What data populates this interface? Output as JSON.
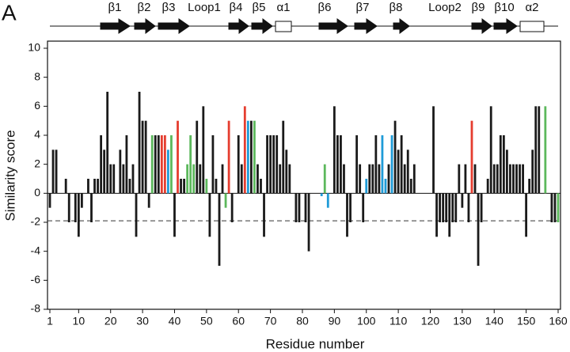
{
  "panel_label": "A",
  "structure": {
    "labels": [
      "β1",
      "β2",
      "β3",
      "Loop1",
      "β4",
      "β5",
      "α1",
      "β6",
      "β7",
      "β8",
      "Loop2",
      "β9",
      "β10",
      "α2"
    ]
  },
  "chart_data": {
    "type": "bar",
    "x_label": "Residue number",
    "y_label": "Similarity score",
    "xlim": [
      1,
      160
    ],
    "xticks": [
      1,
      10,
      20,
      30,
      40,
      50,
      60,
      70,
      80,
      90,
      100,
      110,
      120,
      130,
      140,
      150,
      160
    ],
    "ylim": [
      -8,
      10
    ],
    "yticks": [
      -8,
      -6,
      -4,
      -2,
      0,
      2,
      4,
      6,
      8,
      10
    ],
    "reference_line": -1.9,
    "x": [
      1,
      2,
      3,
      4,
      5,
      6,
      7,
      8,
      9,
      10,
      11,
      12,
      13,
      14,
      15,
      16,
      17,
      18,
      19,
      20,
      21,
      22,
      23,
      24,
      25,
      26,
      27,
      28,
      29,
      30,
      31,
      32,
      33,
      34,
      35,
      36,
      37,
      38,
      39,
      40,
      41,
      42,
      43,
      44,
      45,
      46,
      47,
      48,
      49,
      50,
      51,
      52,
      53,
      54,
      55,
      56,
      57,
      58,
      59,
      60,
      61,
      62,
      63,
      64,
      65,
      66,
      67,
      68,
      69,
      70,
      71,
      72,
      73,
      74,
      75,
      76,
      77,
      78,
      79,
      80,
      81,
      82,
      83,
      84,
      85,
      86,
      87,
      88,
      89,
      90,
      91,
      92,
      93,
      94,
      95,
      96,
      97,
      98,
      99,
      100,
      101,
      102,
      103,
      104,
      105,
      106,
      107,
      108,
      109,
      110,
      111,
      112,
      113,
      114,
      115,
      116,
      117,
      118,
      119,
      120,
      121,
      122,
      123,
      124,
      125,
      126,
      127,
      128,
      129,
      130,
      131,
      132,
      133,
      134,
      135,
      136,
      137,
      138,
      139,
      140,
      141,
      142,
      143,
      144,
      145,
      146,
      147,
      148,
      149,
      150,
      151,
      152,
      153,
      154,
      155,
      156,
      157,
      158,
      159,
      160
    ],
    "values": [
      -1,
      3,
      3,
      0,
      0,
      1,
      -2,
      0,
      -2,
      -3,
      -1,
      0,
      1,
      -2,
      1,
      1,
      4,
      3,
      7,
      2,
      2,
      0,
      3,
      2,
      4,
      1,
      2,
      -3,
      7,
      5,
      5,
      -1,
      4,
      4,
      4,
      4,
      4,
      3,
      4,
      -3,
      5,
      1,
      1,
      2,
      4,
      2,
      5,
      2,
      6,
      1,
      -3,
      4,
      1,
      -5,
      2,
      -1,
      5,
      -2,
      0,
      4,
      2,
      6,
      5,
      5,
      5,
      2,
      1,
      -3,
      4,
      4,
      4,
      4,
      2,
      5,
      3,
      2,
      0,
      -2,
      -2,
      0,
      -2,
      -4,
      0,
      0,
      0,
      -0.2,
      2,
      -1,
      0,
      6,
      4,
      4,
      2,
      -3,
      -2,
      0,
      4,
      2,
      -2,
      1,
      2,
      2,
      4,
      2,
      4,
      1,
      2,
      4,
      5,
      3,
      4,
      2,
      3,
      1,
      2,
      0,
      0,
      0,
      0,
      0,
      6,
      -3,
      -2,
      -2,
      -2,
      -3,
      -2,
      -2,
      2,
      -1,
      2,
      -2,
      5,
      2,
      -5,
      -2,
      0,
      1,
      6,
      2,
      2,
      4,
      4,
      3,
      2,
      2,
      2,
      2,
      2,
      -3,
      1,
      3,
      6,
      6,
      0,
      6,
      0,
      -2,
      -2,
      -2
    ],
    "colors": [
      "#1a1a1a",
      "#1a1a1a",
      "#1a1a1a",
      "#1a1a1a",
      "#1a1a1a",
      "#1a1a1a",
      "#1a1a1a",
      "#1a1a1a",
      "#1a1a1a",
      "#1a1a1a",
      "#1a1a1a",
      "#1a1a1a",
      "#1a1a1a",
      "#1a1a1a",
      "#1a1a1a",
      "#1a1a1a",
      "#1a1a1a",
      "#1a1a1a",
      "#1a1a1a",
      "#1a1a1a",
      "#1a1a1a",
      "#1a1a1a",
      "#1a1a1a",
      "#1a1a1a",
      "#1a1a1a",
      "#1a1a1a",
      "#1a1a1a",
      "#1a1a1a",
      "#1a1a1a",
      "#1a1a1a",
      "#1a1a1a",
      "#1a1a1a",
      "#5cb85c",
      "#1a1a1a",
      "#1a1a1a",
      "#e53d2f",
      "#e53d2f",
      "#1f9bd7",
      "#5cb85c",
      "#1a1a1a",
      "#e53d2f",
      "#1a1a1a",
      "#1a1a1a",
      "#5cb85c",
      "#5cb85c",
      "#5cb85c",
      "#1a1a1a",
      "#1a1a1a",
      "#1a1a1a",
      "#5cb85c",
      "#1a1a1a",
      "#1a1a1a",
      "#1a1a1a",
      "#1a1a1a",
      "#1a1a1a",
      "#5cb85c",
      "#e53d2f",
      "#1a1a1a",
      "#1a1a1a",
      "#1a1a1a",
      "#1a1a1a",
      "#e53d2f",
      "#1f9bd7",
      "#1a1a1a",
      "#5cb85c",
      "#1a1a1a",
      "#1a1a1a",
      "#1a1a1a",
      "#1a1a1a",
      "#1a1a1a",
      "#1a1a1a",
      "#1a1a1a",
      "#1a1a1a",
      "#1a1a1a",
      "#1a1a1a",
      "#1a1a1a",
      "#1a1a1a",
      "#1a1a1a",
      "#1a1a1a",
      "#1a1a1a",
      "#1a1a1a",
      "#1a1a1a",
      "#1a1a1a",
      "#1a1a1a",
      "#1a1a1a",
      "#1f9bd7",
      "#5cb85c",
      "#1f9bd7",
      "#1a1a1a",
      "#1a1a1a",
      "#1a1a1a",
      "#1a1a1a",
      "#1a1a1a",
      "#1a1a1a",
      "#1a1a1a",
      "#1a1a1a",
      "#1a1a1a",
      "#1a1a1a",
      "#1a1a1a",
      "#1f9bd7",
      "#1a1a1a",
      "#1a1a1a",
      "#1a1a1a",
      "#1a1a1a",
      "#1f9bd7",
      "#1f9bd7",
      "#1a1a1a",
      "#1f9bd7",
      "#1a1a1a",
      "#1a1a1a",
      "#1a1a1a",
      "#1a1a1a",
      "#1a1a1a",
      "#1a1a1a",
      "#1a1a1a",
      "#1a1a1a",
      "#1a1a1a",
      "#1a1a1a",
      "#1a1a1a",
      "#1a1a1a",
      "#1a1a1a",
      "#1a1a1a",
      "#1a1a1a",
      "#1a1a1a",
      "#1a1a1a",
      "#1a1a1a",
      "#1a1a1a",
      "#1a1a1a",
      "#1a1a1a",
      "#1a1a1a",
      "#1a1a1a",
      "#1a1a1a",
      "#e53d2f",
      "#1a1a1a",
      "#1a1a1a",
      "#1a1a1a",
      "#1a1a1a",
      "#1a1a1a",
      "#1a1a1a",
      "#1a1a1a",
      "#1a1a1a",
      "#1a1a1a",
      "#1a1a1a",
      "#1a1a1a",
      "#1a1a1a",
      "#1a1a1a",
      "#1a1a1a",
      "#1a1a1a",
      "#1a1a1a",
      "#1a1a1a",
      "#1a1a1a",
      "#1a1a1a",
      "#1a1a1a",
      "#1a1a1a",
      "#1a1a1a",
      "#5cb85c",
      "#1a1a1a",
      "#1a1a1a",
      "#1a1a1a",
      "#5cb85c"
    ]
  }
}
